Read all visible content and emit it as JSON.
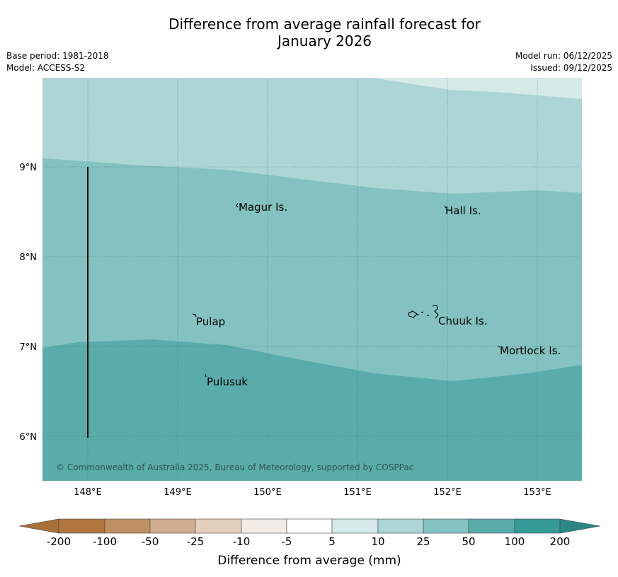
{
  "title": {
    "line1": "Difference from average rainfall forecast for",
    "line2": "January 2026"
  },
  "info": {
    "base_period": "Base period: 1981-2018",
    "model": "Model: ACCESS-S2",
    "model_run": "Model run: 06/12/2025",
    "issued": "Issued: 09/12/2025"
  },
  "map": {
    "lon_ticks": [
      "148°E",
      "149°E",
      "150°E",
      "151°E",
      "152°E",
      "153°E"
    ],
    "lat_ticks": [
      "9°N",
      "8°N",
      "7°N",
      "6°N"
    ],
    "places": [
      "Magur Is.",
      "Hall Is.",
      "Pulap",
      "Chuuk Is.",
      "Mortlock Is.",
      "Pulusuk"
    ],
    "copyright": "© Commonwealth of Australia 2025, Bureau of Meteorology, supported by COSPPac",
    "band_colors": {
      "band_5_10": "#d4e9e8",
      "band_10_25": "#acd6d5",
      "band_25_50": "#83c2c0",
      "band_50_100": "#5aacab"
    }
  },
  "legend": {
    "labels": [
      "-200",
      "-100",
      "-50",
      "-25",
      "-10",
      "-5",
      "5",
      "10",
      "25",
      "50",
      "100",
      "200"
    ],
    "colors": [
      "#a8713a",
      "#b2773f",
      "#c09164",
      "#d1ae8f",
      "#e2d0bd",
      "#f1ede6",
      "#ffffff",
      "#d4e9e8",
      "#acd6d5",
      "#83c2c0",
      "#5aacab",
      "#359a98",
      "#2a8785"
    ],
    "label": "Difference from average (mm)"
  }
}
